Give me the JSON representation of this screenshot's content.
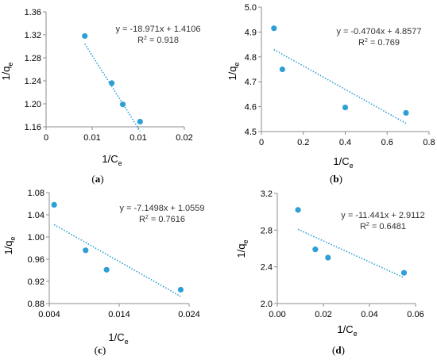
{
  "chart_data": [
    {
      "panel": "(a)",
      "panel_letter": "a",
      "type": "scatter",
      "xlabel": "1/C",
      "xlabel_sub": "e",
      "ylabel": "1/q",
      "ylabel_sub": "e",
      "xlim": [
        0,
        0.02
      ],
      "ylim": [
        1.16,
        1.36
      ],
      "xticks": [
        "0",
        "0.01",
        "0.01",
        "0.02"
      ],
      "yticks": [
        "1.16",
        "1.20",
        "1.24",
        "1.28",
        "1.32",
        "1.36"
      ],
      "equation": "y = -18.971x + 1.4106",
      "r2_label": "R",
      "r2_value": " = 0.918",
      "trendline": {
        "slope": -18.971,
        "intercept": 1.4106
      },
      "points": [
        {
          "x": 0.0056,
          "y": 1.318
        },
        {
          "x": 0.0095,
          "y": 1.236
        },
        {
          "x": 0.0111,
          "y": 1.199
        },
        {
          "x": 0.0136,
          "y": 1.169
        }
      ]
    },
    {
      "panel": "(b)",
      "panel_letter": "b",
      "type": "scatter",
      "xlabel": "1/C",
      "xlabel_sub": "e",
      "ylabel": "1/q",
      "ylabel_sub": "e",
      "xlim": [
        0,
        0.8
      ],
      "ylim": [
        4.5,
        5.0
      ],
      "xticks": [
        "0",
        "0.2",
        "0.4",
        "0.6",
        "0.8"
      ],
      "yticks": [
        "4.5",
        "4.6",
        "4.7",
        "4.8",
        "4.9",
        "5.0"
      ],
      "equation": "y = -0.4704x + 4.8577",
      "r2_label": "R",
      "r2_value": " = 0.769",
      "trendline": {
        "slope": -0.4704,
        "intercept": 4.8577
      },
      "points": [
        {
          "x": 0.06,
          "y": 4.915
        },
        {
          "x": 0.1,
          "y": 4.75
        },
        {
          "x": 0.4,
          "y": 4.597
        },
        {
          "x": 0.69,
          "y": 4.575
        }
      ]
    },
    {
      "panel": "(c)",
      "panel_letter": "c",
      "type": "scatter",
      "xlabel": "1/C",
      "xlabel_sub": "e",
      "ylabel": "1/q",
      "ylabel_sub": "e",
      "xlim": [
        0.004,
        0.024
      ],
      "ylim": [
        0.88,
        1.08
      ],
      "xticks": [
        "0.004",
        "0.014",
        "0.024"
      ],
      "yticks": [
        "0.88",
        "0.92",
        "0.96",
        "1.00",
        "1.04",
        "1.08"
      ],
      "equation": "y = -7.1498x + 1.0559",
      "r2_label": "R",
      "r2_value": " = 0.7616",
      "trendline": {
        "slope": -7.1498,
        "intercept": 1.0559
      },
      "points": [
        {
          "x": 0.0047,
          "y": 1.058
        },
        {
          "x": 0.0092,
          "y": 0.976
        },
        {
          "x": 0.0122,
          "y": 0.941
        },
        {
          "x": 0.0228,
          "y": 0.905
        }
      ]
    },
    {
      "panel": "(d)",
      "panel_letter": "d",
      "type": "scatter",
      "xlabel": "1/C",
      "xlabel_sub": "e",
      "ylabel": "1/q",
      "ylabel_sub": "e",
      "xlim": [
        0,
        0.06
      ],
      "ylim": [
        2.0,
        3.2
      ],
      "xticks": [
        "0.00",
        "0.02",
        "0.04",
        "0.06"
      ],
      "yticks": [
        "2.0",
        "2.4",
        "2.8",
        "3.2"
      ],
      "equation": "y = -11.441x + 2.9112",
      "r2_label": "R",
      "r2_value": " = 0.6481",
      "trendline": {
        "slope": -11.441,
        "intercept": 2.9112
      },
      "points": [
        {
          "x": 0.009,
          "y": 3.02
        },
        {
          "x": 0.0165,
          "y": 2.59
        },
        {
          "x": 0.022,
          "y": 2.5
        },
        {
          "x": 0.055,
          "y": 2.335
        }
      ]
    }
  ],
  "style": {
    "point_color": "#2e9fd6",
    "trendline_color": "#2e9fd6",
    "axis_color": "#8c8c8c",
    "grid": false
  }
}
